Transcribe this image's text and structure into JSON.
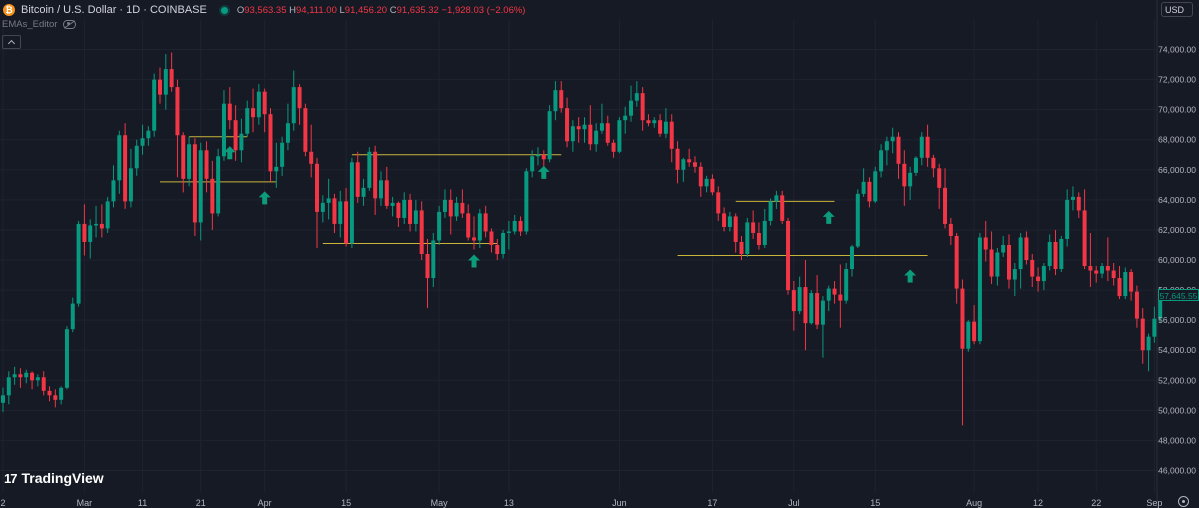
{
  "header": {
    "symbol": "Bitcoin / U.S. Dollar · 1D · COINBASE",
    "ohlc": {
      "o_label": "O",
      "o_value": "93,563.35",
      "h_label": "H",
      "h_value": "94,111.00",
      "l_label": "L",
      "l_value": "91,456.20",
      "c_label": "C",
      "c_value": "91,635.32",
      "change": "−1,928.03 (−2.06%)"
    }
  },
  "indicator": {
    "name": "EMAs_Editor"
  },
  "currency": {
    "label": "USD"
  },
  "brand": {
    "name": "TradingView"
  },
  "colors": {
    "up": "#089981",
    "down": "#f23645",
    "level_line": "#c9b43b",
    "background": "#161a25"
  },
  "icons": [
    "bitcoin-icon",
    "eye-icon",
    "chevron-up-icon",
    "tradingview-logo-icon",
    "settings-icon",
    "arrow-up-icon"
  ],
  "chart_data": {
    "type": "candlestick",
    "y_ticks": [
      "74,000.00",
      "72,000.00",
      "70,000.00",
      "68,000.00",
      "66,000.00",
      "64,000.00",
      "62,000.00",
      "60,000.00",
      "58,000.00",
      "56,000.00",
      "54,000.00",
      "52,000.00",
      "50,000.00",
      "48,000.00",
      "46,000.00"
    ],
    "y_tick_values": [
      74000,
      72000,
      70000,
      68000,
      66000,
      64000,
      62000,
      60000,
      58000,
      56000,
      54000,
      52000,
      50000,
      48000,
      46000
    ],
    "ylim": [
      45700,
      75300
    ],
    "x_ticks": [
      {
        "label": "2",
        "bar": 0
      },
      {
        "label": "Mar",
        "bar": 14
      },
      {
        "label": "11",
        "bar": 24
      },
      {
        "label": "21",
        "bar": 34
      },
      {
        "label": "Apr",
        "bar": 45
      },
      {
        "label": "15",
        "bar": 59
      },
      {
        "label": "May",
        "bar": 75
      },
      {
        "label": "13",
        "bar": 87
      },
      {
        "label": "Jun",
        "bar": 106
      },
      {
        "label": "17",
        "bar": 122
      },
      {
        "label": "Jul",
        "bar": 136
      },
      {
        "label": "15",
        "bar": 150
      },
      {
        "label": "Aug",
        "bar": 167
      },
      {
        "label": "12",
        "bar": 178
      },
      {
        "label": "22",
        "bar": 188
      },
      {
        "label": "Sep",
        "bar": 198
      }
    ],
    "last_price": "57,645.55",
    "candles": [
      [
        50500,
        51500,
        49900,
        51000
      ],
      [
        51000,
        52600,
        50400,
        52200
      ],
      [
        52200,
        52900,
        51700,
        52400
      ],
      [
        52400,
        52800,
        51500,
        52200
      ],
      [
        52200,
        52700,
        51800,
        52500
      ],
      [
        52500,
        52600,
        51400,
        52000
      ],
      [
        52000,
        52400,
        51600,
        52200
      ],
      [
        52200,
        52600,
        51000,
        51300
      ],
      [
        51300,
        51600,
        50600,
        51000
      ],
      [
        51000,
        51400,
        50200,
        50700
      ],
      [
        50700,
        51600,
        50400,
        51500
      ],
      [
        51500,
        55600,
        51400,
        55400
      ],
      [
        55400,
        57500,
        55200,
        57100
      ],
      [
        57100,
        62600,
        56900,
        62400
      ],
      [
        62400,
        63700,
        60300,
        61200
      ],
      [
        61200,
        62700,
        60100,
        62300
      ],
      [
        62300,
        63600,
        61500,
        62400
      ],
      [
        62400,
        63700,
        61500,
        62100
      ],
      [
        62100,
        64200,
        61800,
        63900
      ],
      [
        63900,
        66300,
        63500,
        65300
      ],
      [
        65300,
        68600,
        64400,
        68300
      ],
      [
        68300,
        69100,
        63400,
        63900
      ],
      [
        63900,
        67400,
        63500,
        66100
      ],
      [
        66100,
        68000,
        65600,
        67600
      ],
      [
        67600,
        69000,
        67000,
        68100
      ],
      [
        68100,
        68900,
        67600,
        68600
      ],
      [
        68600,
        72400,
        68200,
        72000
      ],
      [
        72000,
        72800,
        70400,
        71000
      ],
      [
        71000,
        73700,
        70000,
        72700
      ],
      [
        72700,
        73800,
        71200,
        71500
      ],
      [
        71500,
        72000,
        65500,
        68300
      ],
      [
        68300,
        68500,
        64500,
        65400
      ],
      [
        65400,
        68200,
        64900,
        67700
      ],
      [
        67700,
        68100,
        61600,
        62500
      ],
      [
        62500,
        67800,
        61300,
        67300
      ],
      [
        67300,
        67900,
        64500,
        65400
      ],
      [
        65400,
        66600,
        62000,
        63100
      ],
      [
        63100,
        67400,
        62900,
        66900
      ],
      [
        66900,
        71300,
        66600,
        70400
      ],
      [
        70400,
        71500,
        68700,
        69300
      ],
      [
        69300,
        70300,
        66600,
        67300
      ],
      [
        67300,
        69400,
        66500,
        68400
      ],
      [
        68400,
        70600,
        68200,
        70100
      ],
      [
        70100,
        71400,
        68500,
        69500
      ],
      [
        69500,
        71700,
        69000,
        71200
      ],
      [
        71200,
        71400,
        68500,
        69700
      ],
      [
        69700,
        70100,
        65200,
        65900
      ],
      [
        65900,
        67800,
        64800,
        66200
      ],
      [
        66200,
        68200,
        65600,
        67800
      ],
      [
        67800,
        70400,
        67300,
        69100
      ],
      [
        69100,
        72600,
        68600,
        71500
      ],
      [
        71500,
        71700,
        69000,
        70100
      ],
      [
        70100,
        70400,
        66900,
        67200
      ],
      [
        67200,
        69000,
        65500,
        66400
      ],
      [
        66400,
        66800,
        60800,
        63200
      ],
      [
        63200,
        64300,
        62500,
        63800
      ],
      [
        63800,
        65400,
        62700,
        64100
      ],
      [
        64100,
        64400,
        61800,
        62400
      ],
      [
        62400,
        64600,
        61500,
        63900
      ],
      [
        63900,
        64800,
        60900,
        61100
      ],
      [
        61100,
        66800,
        60800,
        66500
      ],
      [
        66500,
        67200,
        63800,
        64200
      ],
      [
        64200,
        65400,
        63600,
        64800
      ],
      [
        64800,
        67500,
        64600,
        67200
      ],
      [
        67200,
        67600,
        63000,
        64100
      ],
      [
        64100,
        65900,
        63600,
        65300
      ],
      [
        65300,
        66200,
        63400,
        63600
      ],
      [
        63600,
        64200,
        62900,
        63800
      ],
      [
        63800,
        63900,
        62200,
        62800
      ],
      [
        62800,
        64500,
        62400,
        64000
      ],
      [
        64000,
        64400,
        61900,
        62400
      ],
      [
        62400,
        64000,
        61900,
        63300
      ],
      [
        63300,
        63900,
        60000,
        60400
      ],
      [
        60400,
        61400,
        56800,
        58800
      ],
      [
        58800,
        61800,
        58200,
        61300
      ],
      [
        61300,
        63600,
        61000,
        63200
      ],
      [
        63200,
        64700,
        62800,
        64000
      ],
      [
        64000,
        64700,
        61700,
        62900
      ],
      [
        62900,
        64200,
        62600,
        63800
      ],
      [
        63800,
        64700,
        62800,
        63100
      ],
      [
        63100,
        63700,
        61300,
        61500
      ],
      [
        61500,
        62900,
        60700,
        61300
      ],
      [
        61300,
        63400,
        60800,
        63100
      ],
      [
        63100,
        63600,
        61500,
        61900
      ],
      [
        61900,
        62100,
        60500,
        61000
      ],
      [
        61000,
        61400,
        60000,
        60400
      ],
      [
        60400,
        62000,
        60100,
        61800
      ],
      [
        61800,
        62600,
        60700,
        61900
      ],
      [
        61900,
        63000,
        61700,
        62600
      ],
      [
        62600,
        62900,
        61600,
        61900
      ],
      [
        61900,
        66100,
        61700,
        65900
      ],
      [
        65900,
        67300,
        65500,
        66900
      ],
      [
        66900,
        67500,
        66300,
        67000
      ],
      [
        67000,
        67300,
        66000,
        66700
      ],
      [
        66700,
        70300,
        66500,
        69900
      ],
      [
        69900,
        71900,
        69300,
        71300
      ],
      [
        71300,
        71900,
        69800,
        70100
      ],
      [
        70100,
        70800,
        67500,
        67900
      ],
      [
        67900,
        69300,
        67200,
        68900
      ],
      [
        68900,
        69500,
        67800,
        68700
      ],
      [
        68700,
        69500,
        67800,
        69000
      ],
      [
        69000,
        70300,
        67300,
        67700
      ],
      [
        67700,
        69100,
        67200,
        68600
      ],
      [
        68600,
        70400,
        68400,
        69100
      ],
      [
        69100,
        69600,
        67600,
        67800
      ],
      [
        67800,
        68000,
        66800,
        67200
      ],
      [
        67200,
        69500,
        67100,
        69300
      ],
      [
        69300,
        70200,
        68400,
        69600
      ],
      [
        69600,
        71600,
        69200,
        70600
      ],
      [
        70600,
        71900,
        70200,
        71100
      ],
      [
        71100,
        71500,
        68600,
        69300
      ],
      [
        69300,
        69700,
        68900,
        69100
      ],
      [
        69100,
        69500,
        68800,
        69300
      ],
      [
        69300,
        69700,
        68200,
        68400
      ],
      [
        68400,
        70100,
        68100,
        69200
      ],
      [
        69200,
        69700,
        66500,
        67400
      ],
      [
        67400,
        67900,
        65100,
        66000
      ],
      [
        66000,
        66800,
        65200,
        66700
      ],
      [
        66700,
        67400,
        66200,
        66500
      ],
      [
        66500,
        66900,
        65800,
        66200
      ],
      [
        66200,
        66500,
        64200,
        64900
      ],
      [
        64900,
        65600,
        64500,
        65400
      ],
      [
        65400,
        65700,
        64300,
        64500
      ],
      [
        64500,
        64900,
        62600,
        63100
      ],
      [
        63100,
        63500,
        61900,
        62200
      ],
      [
        62200,
        63200,
        61900,
        62900
      ],
      [
        62900,
        63100,
        60500,
        61200
      ],
      [
        61200,
        61600,
        60000,
        60400
      ],
      [
        60400,
        62800,
        60200,
        62500
      ],
      [
        62500,
        63300,
        61400,
        61800
      ],
      [
        61800,
        62500,
        60700,
        61000
      ],
      [
        61000,
        63400,
        60800,
        62600
      ],
      [
        62600,
        64100,
        62300,
        63900
      ],
      [
        63900,
        64600,
        63400,
        64300
      ],
      [
        64300,
        64600,
        62400,
        62600
      ],
      [
        62600,
        62800,
        57700,
        58000
      ],
      [
        58000,
        58600,
        55300,
        56600
      ],
      [
        56600,
        58900,
        56400,
        58200
      ],
      [
        58200,
        60000,
        54000,
        55800
      ],
      [
        55800,
        58000,
        55700,
        57800
      ],
      [
        57800,
        59000,
        55400,
        55700
      ],
      [
        55700,
        57600,
        53500,
        57300
      ],
      [
        57300,
        58300,
        56600,
        58100
      ],
      [
        58100,
        58600,
        57100,
        57700
      ],
      [
        57700,
        59700,
        55500,
        57300
      ],
      [
        57300,
        59800,
        57100,
        59400
      ],
      [
        59400,
        61000,
        58900,
        60900
      ],
      [
        60900,
        64700,
        60800,
        64400
      ],
      [
        64400,
        66100,
        64200,
        65200
      ],
      [
        65200,
        65500,
        63500,
        63900
      ],
      [
        63900,
        66200,
        63800,
        65900
      ],
      [
        65900,
        67700,
        65500,
        67300
      ],
      [
        67300,
        68200,
        66300,
        67900
      ],
      [
        67900,
        68800,
        67100,
        68200
      ],
      [
        68200,
        68500,
        65400,
        66400
      ],
      [
        66400,
        67300,
        63600,
        64900
      ],
      [
        64900,
        66200,
        64000,
        65800
      ],
      [
        65800,
        66900,
        65600,
        66800
      ],
      [
        66800,
        68500,
        66300,
        68200
      ],
      [
        68200,
        69000,
        66200,
        66800
      ],
      [
        66800,
        67000,
        65500,
        66100
      ],
      [
        66100,
        66400,
        63400,
        64800
      ],
      [
        64800,
        66100,
        62100,
        62400
      ],
      [
        62400,
        62800,
        61000,
        61600
      ],
      [
        61600,
        61800,
        57100,
        58100
      ],
      [
        58100,
        58700,
        49000,
        54100
      ],
      [
        54100,
        56000,
        53900,
        55900
      ],
      [
        55900,
        57000,
        54400,
        54600
      ],
      [
        54600,
        61800,
        54400,
        61500
      ],
      [
        61500,
        62600,
        59900,
        60700
      ],
      [
        60700,
        61900,
        58400,
        58900
      ],
      [
        58900,
        60800,
        58300,
        60500
      ],
      [
        60500,
        61600,
        60200,
        61000
      ],
      [
        61000,
        61700,
        58100,
        58700
      ],
      [
        58700,
        59800,
        57600,
        59400
      ],
      [
        59400,
        61800,
        58100,
        61500
      ],
      [
        61500,
        61900,
        59700,
        60000
      ],
      [
        60000,
        60400,
        58200,
        58900
      ],
      [
        58900,
        59500,
        57900,
        58600
      ],
      [
        58600,
        59800,
        58000,
        59600
      ],
      [
        59600,
        61700,
        59300,
        61200
      ],
      [
        61200,
        62000,
        59000,
        59400
      ],
      [
        59400,
        61600,
        59200,
        61400
      ],
      [
        61400,
        64700,
        60900,
        64000
      ],
      [
        64000,
        64900,
        63300,
        64200
      ],
      [
        64200,
        64500,
        62800,
        63300
      ],
      [
        63300,
        64700,
        59400,
        59600
      ],
      [
        59600,
        61800,
        58200,
        59300
      ],
      [
        59300,
        59600,
        58500,
        59100
      ],
      [
        59100,
        59800,
        58800,
        59600
      ],
      [
        59600,
        61500,
        58600,
        59300
      ],
      [
        59300,
        59800,
        58300,
        58800
      ],
      [
        58800,
        59600,
        57400,
        57600
      ],
      [
        57600,
        59500,
        57400,
        59200
      ],
      [
        59200,
        59400,
        57300,
        57900
      ],
      [
        57900,
        58300,
        55500,
        56100
      ],
      [
        56100,
        56800,
        53100,
        54000
      ],
      [
        54000,
        55100,
        52600,
        54900
      ],
      [
        54900,
        56900,
        54500,
        56100
      ],
      [
        56100,
        58200,
        55800,
        57646
      ]
    ],
    "level_lines": [
      {
        "price": 68200,
        "from": 32,
        "to": 42
      },
      {
        "price": 65200,
        "from": 27,
        "to": 47
      },
      {
        "price": 67000,
        "from": 60,
        "to": 96
      },
      {
        "price": 61100,
        "from": 55,
        "to": 85
      },
      {
        "price": 63900,
        "from": 126,
        "to": 143
      },
      {
        "price": 60300,
        "from": 116,
        "to": 159
      }
    ],
    "markers": [
      {
        "bar": 39,
        "price": 67100
      },
      {
        "bar": 45,
        "price": 64100
      },
      {
        "bar": 81,
        "price": 59900
      },
      {
        "bar": 93,
        "price": 65800
      },
      {
        "bar": 142,
        "price": 62800
      },
      {
        "bar": 156,
        "price": 58900
      }
    ]
  }
}
